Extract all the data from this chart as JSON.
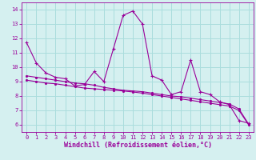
{
  "xlabel": "Windchill (Refroidissement éolien,°C)",
  "x": [
    0,
    1,
    2,
    3,
    4,
    5,
    6,
    7,
    8,
    9,
    10,
    11,
    12,
    13,
    14,
    15,
    16,
    17,
    18,
    19,
    20,
    21,
    22,
    23
  ],
  "y_line1": [
    11.7,
    10.3,
    9.6,
    9.3,
    9.2,
    8.7,
    8.8,
    9.7,
    9.0,
    11.3,
    13.6,
    13.9,
    13.0,
    9.4,
    9.1,
    8.1,
    8.3,
    10.5,
    8.3,
    8.1,
    7.6,
    7.4,
    6.3,
    6.1
  ],
  "y_line2": [
    9.4,
    9.3,
    9.2,
    9.1,
    9.0,
    8.9,
    8.85,
    8.75,
    8.6,
    8.5,
    8.4,
    8.35,
    8.3,
    8.2,
    8.1,
    8.0,
    7.95,
    7.85,
    7.75,
    7.65,
    7.55,
    7.45,
    7.1,
    6.05
  ],
  "y_line3": [
    9.1,
    9.0,
    8.9,
    8.85,
    8.75,
    8.65,
    8.55,
    8.5,
    8.45,
    8.4,
    8.35,
    8.28,
    8.2,
    8.1,
    8.0,
    7.9,
    7.8,
    7.7,
    7.6,
    7.5,
    7.4,
    7.3,
    7.0,
    6.0
  ],
  "line_color": "#990099",
  "bg_color": "#d5f0f0",
  "grid_color": "#aadddd",
  "ylim": [
    5.5,
    14.5
  ],
  "xlim": [
    -0.5,
    23.5
  ],
  "yticks": [
    6,
    7,
    8,
    9,
    10,
    11,
    12,
    13,
    14
  ],
  "xticks": [
    0,
    1,
    2,
    3,
    4,
    5,
    6,
    7,
    8,
    9,
    10,
    11,
    12,
    13,
    14,
    15,
    16,
    17,
    18,
    19,
    20,
    21,
    22,
    23
  ]
}
